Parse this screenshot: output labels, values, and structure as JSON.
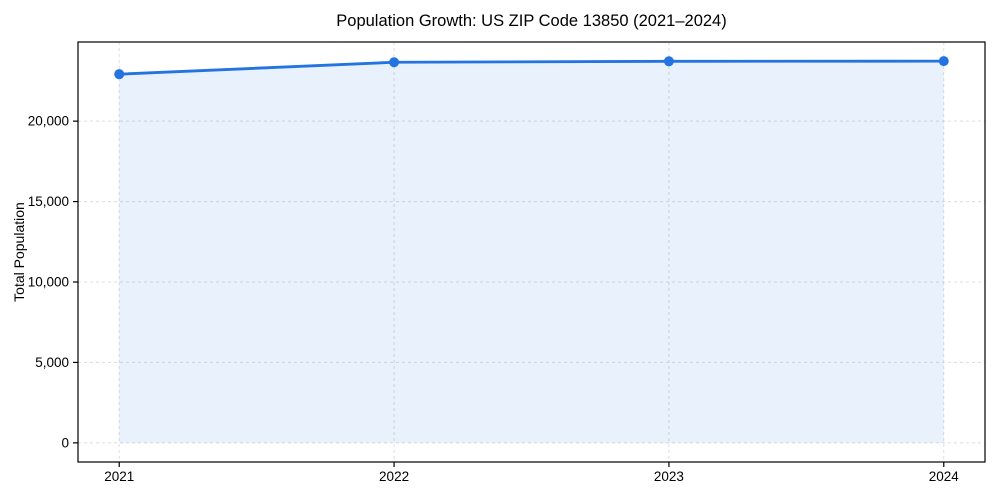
{
  "chart_data": {
    "type": "area",
    "title": "Population Growth: US ZIP Code 13850 (2021–2024)",
    "xlabel": "",
    "ylabel": "Total Population",
    "categories": [
      "2021",
      "2022",
      "2023",
      "2024"
    ],
    "series": [
      {
        "name": "Total Population",
        "values": [
          22920,
          23660,
          23720,
          23730
        ]
      }
    ],
    "xlim": [
      2020.85,
      2024.15
    ],
    "ylim": [
      -1190,
      24920
    ],
    "yticks": [
      0,
      5000,
      10000,
      15000,
      20000
    ],
    "ytick_labels": [
      "0",
      "5,000",
      "10,000",
      "15,000",
      "20,000"
    ],
    "grid": "both-dashed",
    "legend_position": "none",
    "line_color": "#2373e1",
    "marker_color": "#2373e1",
    "fill_color": "rgba(35,115,225,0.10)",
    "grid_color": "#dcdcdc",
    "axis_color": "#000000"
  }
}
